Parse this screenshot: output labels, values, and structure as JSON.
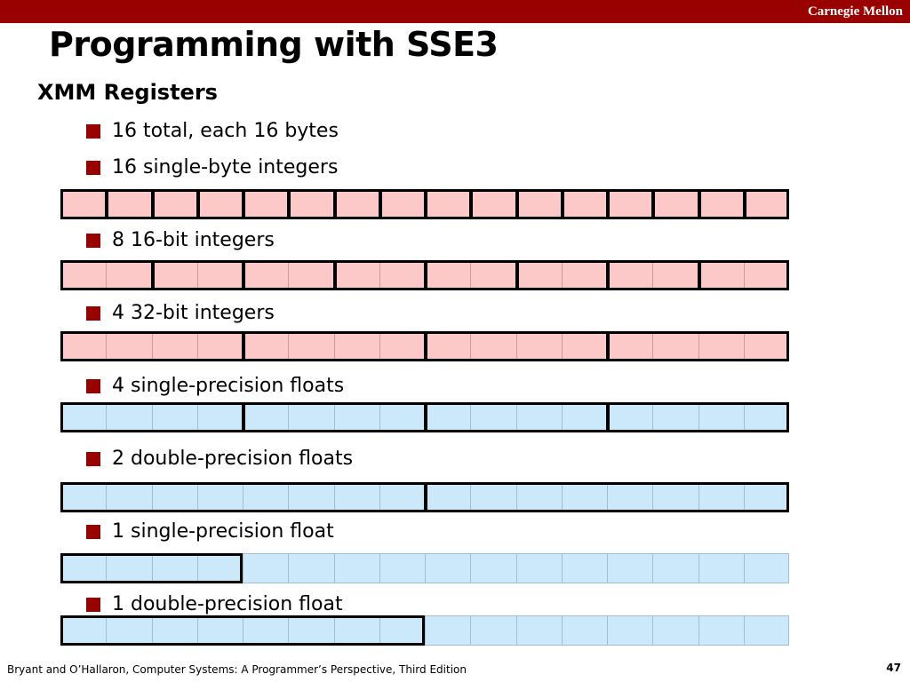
{
  "header": {
    "brand": "Carnegie Mellon",
    "bar_color": "#990000"
  },
  "title": "Programming with SSE3",
  "subtitle": "XMM Registers",
  "bullets": [
    "16 total, each 16 bytes",
    "16 single-byte integers",
    "8 16-bit integers",
    "4 32-bit integers",
    "4 single-precision floats",
    "2 double-precision floats",
    "1 single-precision float",
    "1 double-precision float"
  ],
  "colors": {
    "integer_fill": "#fcc8c8",
    "float_fill": "#cce9fb",
    "bullet": "#990000"
  },
  "registers": [
    {
      "kind": "integer",
      "cells": 16,
      "group_bytes": 1,
      "groups_shown": 16
    },
    {
      "kind": "integer",
      "cells": 16,
      "group_bytes": 2,
      "groups_shown": 8
    },
    {
      "kind": "integer",
      "cells": 16,
      "group_bytes": 4,
      "groups_shown": 4
    },
    {
      "kind": "float",
      "cells": 16,
      "group_bytes": 4,
      "groups_shown": 4
    },
    {
      "kind": "float",
      "cells": 16,
      "group_bytes": 8,
      "groups_shown": 2
    },
    {
      "kind": "float",
      "cells": 16,
      "group_bytes": 4,
      "groups_shown": 1
    },
    {
      "kind": "float",
      "cells": 16,
      "group_bytes": 8,
      "groups_shown": 1
    }
  ],
  "footer": {
    "citation": "Bryant and O’Hallaron, Computer Systems: A Programmer’s Perspective, Third Edition",
    "page": "47"
  }
}
